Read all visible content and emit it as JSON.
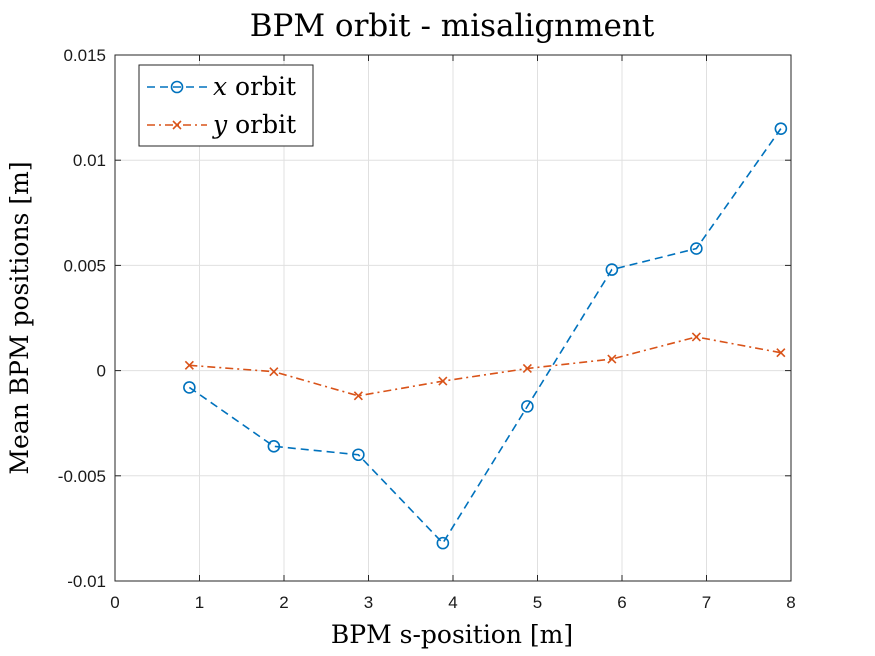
{
  "chart_data": {
    "type": "line",
    "title": "BPM orbit - misalignment",
    "xlabel": "BPM s-position [m]",
    "ylabel": "Mean BPM positions [m]",
    "xlim": [
      0,
      8
    ],
    "ylim": [
      -0.01,
      0.015
    ],
    "xticks": [
      0,
      1,
      2,
      3,
      4,
      5,
      6,
      7,
      8
    ],
    "xtick_labels": [
      "0",
      "1",
      "2",
      "3",
      "4",
      "5",
      "6",
      "7",
      "8"
    ],
    "yticks": [
      -0.01,
      -0.005,
      0,
      0.005,
      0.01,
      0.015
    ],
    "ytick_labels": [
      "-0.01",
      "-0.005",
      "0",
      "0.005",
      "0.01",
      "0.015"
    ],
    "grid": true,
    "legend_position": "top-left",
    "series": [
      {
        "name": "x orbit",
        "legend_var": "x",
        "legend_word": "orbit",
        "color": "#0072BD",
        "line_style": "dashed",
        "marker": "circle",
        "x": [
          0.88,
          1.88,
          2.88,
          3.88,
          4.88,
          5.88,
          6.88,
          7.88
        ],
        "y": [
          -0.0008,
          -0.0036,
          -0.004,
          -0.0082,
          -0.0017,
          0.0048,
          0.0058,
          0.0115
        ]
      },
      {
        "name": "y orbit",
        "legend_var": "y",
        "legend_word": "orbit",
        "color": "#D95319",
        "line_style": "dash-dot",
        "marker": "x",
        "x": [
          0.88,
          1.88,
          2.88,
          3.88,
          4.88,
          5.88,
          6.88,
          7.88
        ],
        "y": [
          0.00025,
          -5e-05,
          -0.0012,
          -0.0005,
          0.0001,
          0.00055,
          0.0016,
          0.00085
        ]
      }
    ]
  }
}
